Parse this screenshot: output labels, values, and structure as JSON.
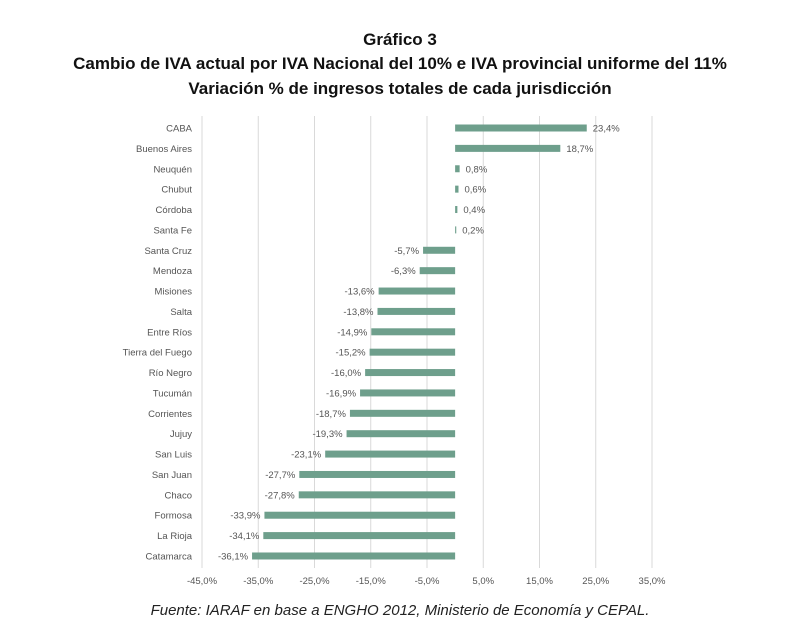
{
  "title": "Gráfico 3",
  "subtitle": "Cambio de IVA actual por IVA Nacional del 10% e IVA provincial uniforme del 11%",
  "subtitle2": "Variación % de ingresos totales de cada jurisdicción",
  "source": "Fuente: IARAF en base a ENGHO 2012, Ministerio de Economía y CEPAL.",
  "chart_data": {
    "type": "bar",
    "orientation": "horizontal",
    "categories": [
      "CABA",
      "Buenos Aires",
      "Neuquén",
      "Chubut",
      "Córdoba",
      "Santa Fe",
      "Santa Cruz",
      "Mendoza",
      "Misiones",
      "Salta",
      "Entre Ríos",
      "Tierra del Fuego",
      "Río Negro",
      "Tucumán",
      "Corrientes",
      "Jujuy",
      "San Luis",
      "San Juan",
      "Chaco",
      "Formosa",
      "La Rioja",
      "Catamarca"
    ],
    "values": [
      23.4,
      18.7,
      0.8,
      0.6,
      0.4,
      0.2,
      -5.7,
      -6.3,
      -13.6,
      -13.8,
      -14.9,
      -15.2,
      -16.0,
      -16.9,
      -18.7,
      -19.3,
      -23.1,
      -27.7,
      -27.8,
      -33.9,
      -34.1,
      -36.1
    ],
    "data_labels": [
      "23,4%",
      "18,7%",
      "0,8%",
      "0,6%",
      "0,4%",
      "0,2%",
      "-5,7%",
      "-6,3%",
      "-13,6%",
      "-13,8%",
      "-14,9%",
      "-15,2%",
      "-16,0%",
      "-16,9%",
      "-18,7%",
      "-19,3%",
      "-23,1%",
      "-27,7%",
      "-27,8%",
      "-33,9%",
      "-34,1%",
      "-36,1%"
    ],
    "xticks": [
      -45,
      -35,
      -25,
      -15,
      -5,
      5,
      15,
      25,
      35
    ],
    "xtick_labels": [
      "-45,0%",
      "-35,0%",
      "-25,0%",
      "-15,0%",
      "-5,0%",
      "5,0%",
      "15,0%",
      "25,0%",
      "35,0%"
    ],
    "xlim": [
      -45,
      35
    ],
    "grid": true,
    "bar_color": "#6e9f8c",
    "xlabel": "",
    "ylabel": ""
  }
}
